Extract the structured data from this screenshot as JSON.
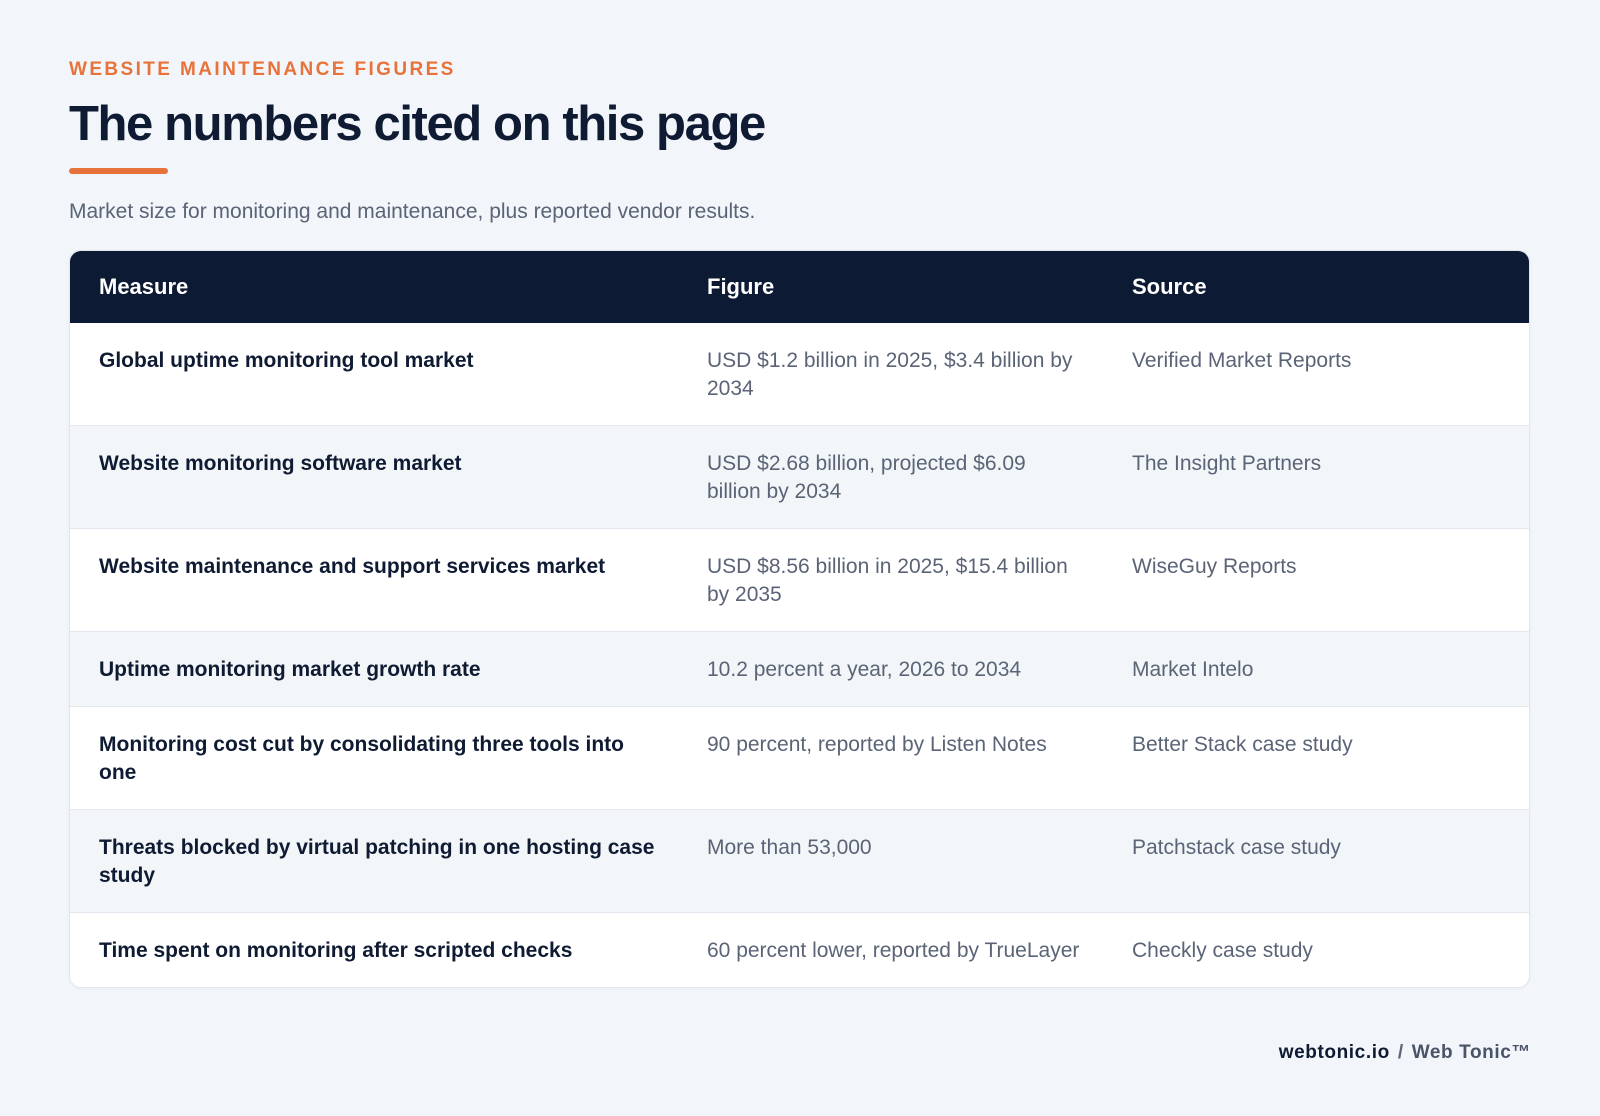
{
  "header": {
    "eyebrow": "WEBSITE MAINTENANCE FIGURES",
    "title": "The numbers cited on this page",
    "subtitle": "Market size for monitoring and maintenance, plus reported vendor results."
  },
  "table": {
    "columns": [
      "Measure",
      "Figure",
      "Source"
    ],
    "rows": [
      {
        "measure": "Global uptime monitoring tool market",
        "figure": "USD $1.2 billion in 2025, $3.4 billion by 2034",
        "source": "Verified Market Reports"
      },
      {
        "measure": "Website monitoring software market",
        "figure": "USD $2.68 billion, projected $6.09 billion by 2034",
        "source": "The Insight Partners"
      },
      {
        "measure": "Website maintenance and support services market",
        "figure": "USD $8.56 billion in 2025, $15.4 billion by 2035",
        "source": "WiseGuy Reports"
      },
      {
        "measure": "Uptime monitoring market growth rate",
        "figure": "10.2 percent a year, 2026 to 2034",
        "source": "Market Intelo"
      },
      {
        "measure": "Monitoring cost cut by consolidating three tools into one",
        "figure": "90 percent, reported by Listen Notes",
        "source": "Better Stack case study"
      },
      {
        "measure": "Threats blocked by virtual patching in one hosting case study",
        "figure": "More than 53,000",
        "source": "Patchstack case study"
      },
      {
        "measure": "Time spent on monitoring after scripted checks",
        "figure": "60 percent lower, reported by TrueLayer",
        "source": "Checkly case study"
      }
    ]
  },
  "footer": {
    "domain": "webtonic.io",
    "separator": "/",
    "brand": "Web Tonic™"
  },
  "colors": {
    "accent": "#e8733a",
    "header_bg": "#0c1a33",
    "page_bg": "#f2f5f9"
  }
}
